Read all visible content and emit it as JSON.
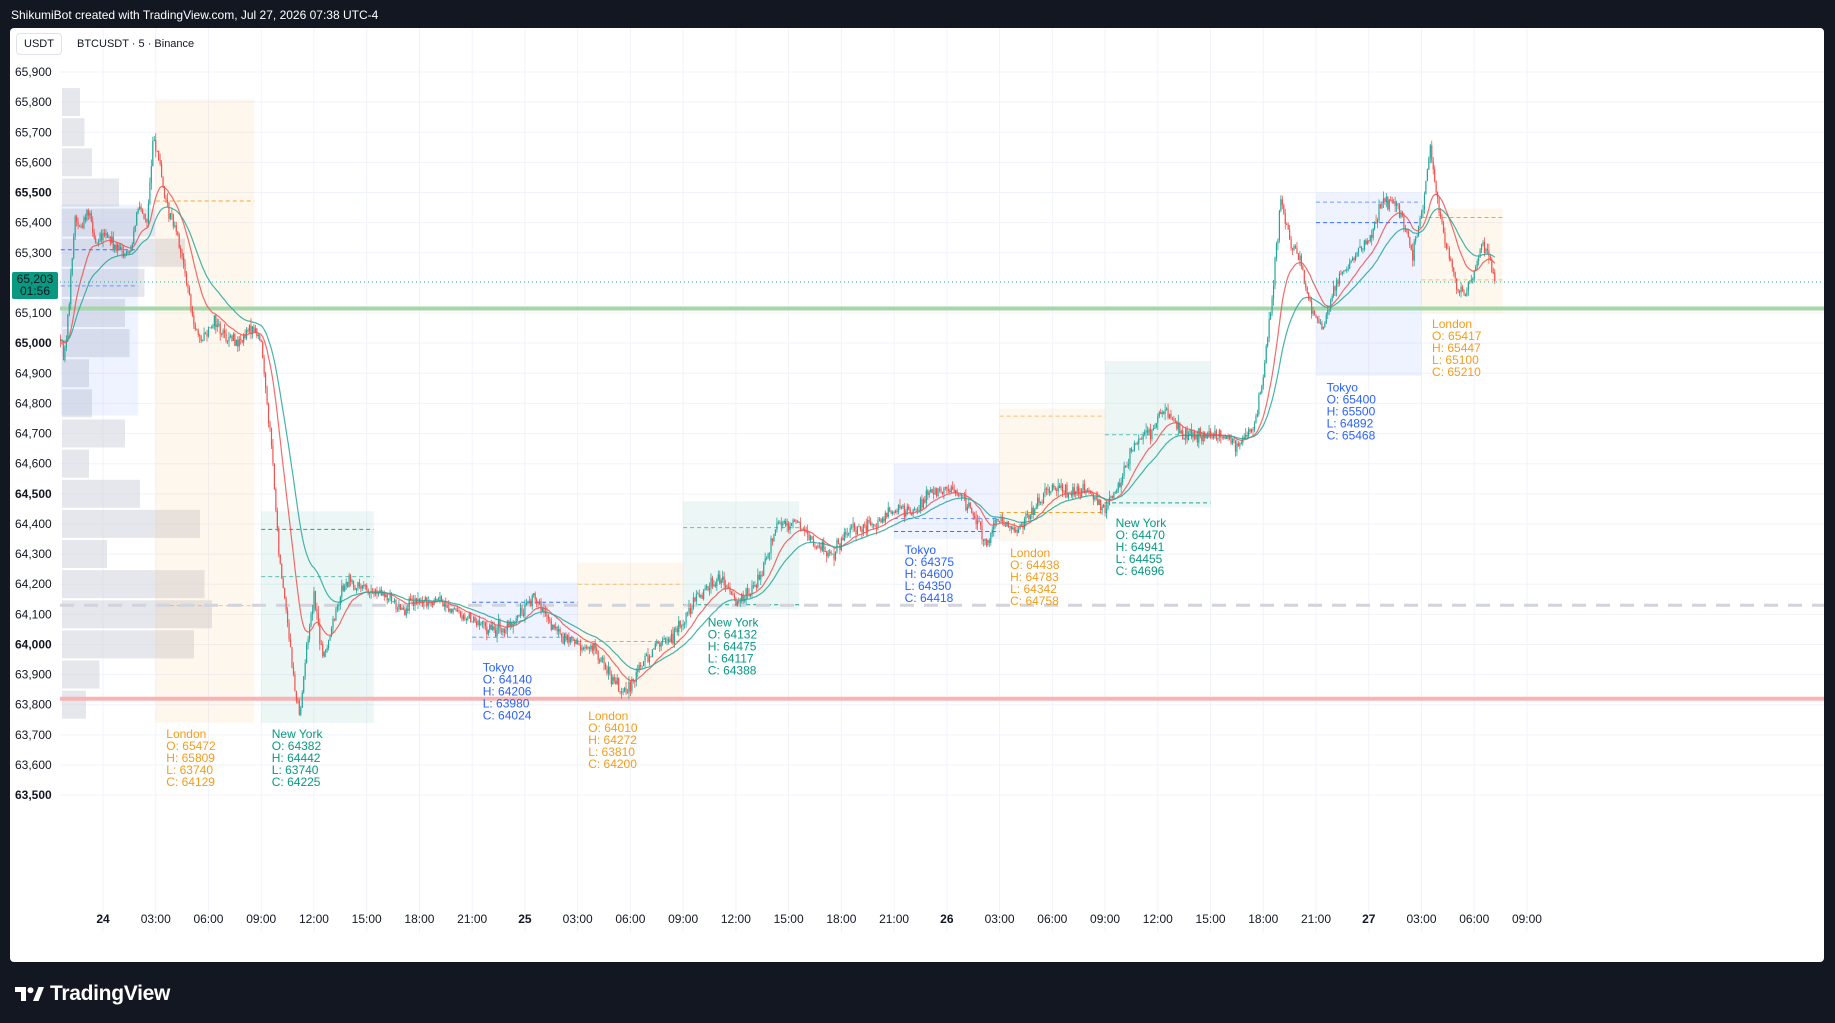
{
  "header": {
    "created_by": "ShikumiBot created with TradingView.com, Jul 27, 2026 07:38 UTC-4"
  },
  "symbol": {
    "currency": "USDT",
    "title": "BTCUSDT · 5 · Binance"
  },
  "footer": {
    "brand": "TradingView"
  },
  "colors": {
    "up": "#26a69a",
    "down": "#ef5350",
    "tokyo": "#2962ff",
    "london": "#f59c1a",
    "newyork": "#089981",
    "ema_fast": "#ef5350",
    "ema_slow": "#26a69a"
  },
  "chart_data": {
    "type": "candlestick",
    "symbol": "BTCUSDT",
    "interval": "5",
    "exchange": "Binance",
    "ylim": [
      63500,
      65950
    ],
    "y_ticks": [
      {
        "value": 65900,
        "label": "65,900"
      },
      {
        "value": 65800,
        "label": "65,800"
      },
      {
        "value": 65700,
        "label": "65,700"
      },
      {
        "value": 65600,
        "label": "65,600"
      },
      {
        "value": 65500,
        "label": "65,500",
        "bold": true
      },
      {
        "value": 65400,
        "label": "65,400"
      },
      {
        "value": 65300,
        "label": "65,300"
      },
      {
        "value": 65100,
        "label": "65,100"
      },
      {
        "value": 65000,
        "label": "65,000",
        "bold": true
      },
      {
        "value": 64900,
        "label": "64,900"
      },
      {
        "value": 64800,
        "label": "64,800"
      },
      {
        "value": 64700,
        "label": "64,700"
      },
      {
        "value": 64600,
        "label": "64,600"
      },
      {
        "value": 64500,
        "label": "64,500",
        "bold": true
      },
      {
        "value": 64400,
        "label": "64,400"
      },
      {
        "value": 64300,
        "label": "64,300"
      },
      {
        "value": 64200,
        "label": "64,200"
      },
      {
        "value": 64100,
        "label": "64,100"
      },
      {
        "value": 64000,
        "label": "64,000",
        "bold": true
      },
      {
        "value": 63900,
        "label": "63,900"
      },
      {
        "value": 63800,
        "label": "63,800"
      },
      {
        "value": 63700,
        "label": "63,700"
      },
      {
        "value": 63600,
        "label": "63,600"
      },
      {
        "value": 63500,
        "label": "63,500",
        "bold": true
      }
    ],
    "x_ticks": [
      {
        "t": 0,
        "label": "24",
        "bold": true
      },
      {
        "t": 3,
        "label": "03:00"
      },
      {
        "t": 6,
        "label": "06:00"
      },
      {
        "t": 9,
        "label": "09:00"
      },
      {
        "t": 12,
        "label": "12:00"
      },
      {
        "t": 15,
        "label": "15:00"
      },
      {
        "t": 18,
        "label": "18:00"
      },
      {
        "t": 21,
        "label": "21:00"
      },
      {
        "t": 24,
        "label": "25",
        "bold": true
      },
      {
        "t": 27,
        "label": "03:00"
      },
      {
        "t": 30,
        "label": "06:00"
      },
      {
        "t": 33,
        "label": "09:00"
      },
      {
        "t": 36,
        "label": "12:00"
      },
      {
        "t": 39,
        "label": "15:00"
      },
      {
        "t": 42,
        "label": "18:00"
      },
      {
        "t": 45,
        "label": "21:00"
      },
      {
        "t": 48,
        "label": "26",
        "bold": true
      },
      {
        "t": 51,
        "label": "03:00"
      },
      {
        "t": 54,
        "label": "06:00"
      },
      {
        "t": 57,
        "label": "09:00"
      },
      {
        "t": 60,
        "label": "12:00"
      },
      {
        "t": 63,
        "label": "15:00"
      },
      {
        "t": 66,
        "label": "18:00"
      },
      {
        "t": 69,
        "label": "21:00"
      },
      {
        "t": 72,
        "label": "27",
        "bold": true
      },
      {
        "t": 75,
        "label": "03:00"
      },
      {
        "t": 78,
        "label": "06:00"
      },
      {
        "t": 81,
        "label": "09:00"
      }
    ],
    "last_price": {
      "label": "65,203",
      "countdown": "01:56",
      "value": 65203
    },
    "key_levels": [
      {
        "name": "green-level",
        "value": 65115,
        "color": "#a5d6a7"
      },
      {
        "name": "red-level",
        "value": 63820,
        "color": "#f8b4b4"
      },
      {
        "name": "gray-dashed-level",
        "value": 64130,
        "color": "#d1d4dc"
      }
    ],
    "price_path": [
      [
        -2.5,
        65020
      ],
      [
        -2.2,
        64960
      ],
      [
        -1.9,
        65150
      ],
      [
        -1.6,
        65420
      ],
      [
        -1.3,
        65380
      ],
      [
        -0.8,
        65450
      ],
      [
        -0.4,
        65330
      ],
      [
        0.2,
        65360
      ],
      [
        0.8,
        65310
      ],
      [
        1.5,
        65300
      ],
      [
        2.0,
        65450
      ],
      [
        2.5,
        65400
      ],
      [
        2.9,
        65700
      ],
      [
        3.2,
        65600
      ],
      [
        3.6,
        65450
      ],
      [
        4.2,
        65380
      ],
      [
        5.0,
        65120
      ],
      [
        5.5,
        65000
      ],
      [
        6.3,
        65080
      ],
      [
        7.0,
        65020
      ],
      [
        7.8,
        65000
      ],
      [
        8.5,
        65060
      ],
      [
        9.0,
        65000
      ],
      [
        9.6,
        64650
      ],
      [
        10.0,
        64300
      ],
      [
        10.5,
        64080
      ],
      [
        10.9,
        63850
      ],
      [
        11.2,
        63770
      ],
      [
        11.6,
        64000
      ],
      [
        12.0,
        64170
      ],
      [
        12.5,
        63950
      ],
      [
        13.0,
        64050
      ],
      [
        13.5,
        64170
      ],
      [
        14.0,
        64210
      ],
      [
        15.0,
        64180
      ],
      [
        16.0,
        64160
      ],
      [
        17.0,
        64120
      ],
      [
        18.0,
        64140
      ],
      [
        19.0,
        64150
      ],
      [
        20.0,
        64110
      ],
      [
        21.0,
        64080
      ],
      [
        22.0,
        64050
      ],
      [
        23.0,
        64050
      ],
      [
        24.0,
        64120
      ],
      [
        24.6,
        64170
      ],
      [
        25.2,
        64080
      ],
      [
        26.0,
        64030
      ],
      [
        27.0,
        64000
      ],
      [
        28.0,
        63980
      ],
      [
        29.0,
        63880
      ],
      [
        29.7,
        63830
      ],
      [
        30.5,
        63930
      ],
      [
        31.5,
        64000
      ],
      [
        32.5,
        64030
      ],
      [
        33.5,
        64130
      ],
      [
        34.0,
        64170
      ],
      [
        35.0,
        64220
      ],
      [
        36.0,
        64150
      ],
      [
        37.0,
        64180
      ],
      [
        37.8,
        64300
      ],
      [
        38.3,
        64400
      ],
      [
        39.5,
        64410
      ],
      [
        40.5,
        64330
      ],
      [
        41.5,
        64300
      ],
      [
        42.5,
        64380
      ],
      [
        44.0,
        64400
      ],
      [
        45.0,
        64450
      ],
      [
        46.0,
        64440
      ],
      [
        47.0,
        64500
      ],
      [
        48.0,
        64520
      ],
      [
        49.0,
        64480
      ],
      [
        49.7,
        64420
      ],
      [
        50.3,
        64330
      ],
      [
        51.0,
        64420
      ],
      [
        52.0,
        64380
      ],
      [
        53.0,
        64450
      ],
      [
        54.0,
        64520
      ],
      [
        55.0,
        64500
      ],
      [
        56.0,
        64520
      ],
      [
        57.0,
        64450
      ],
      [
        58.0,
        64560
      ],
      [
        58.5,
        64650
      ],
      [
        59.5,
        64700
      ],
      [
        60.5,
        64780
      ],
      [
        61.5,
        64690
      ],
      [
        62.5,
        64690
      ],
      [
        63.5,
        64700
      ],
      [
        64.5,
        64660
      ],
      [
        65.5,
        64730
      ],
      [
        66.0,
        64900
      ],
      [
        66.5,
        65150
      ],
      [
        67.0,
        65480
      ],
      [
        67.6,
        65320
      ],
      [
        68.2,
        65250
      ],
      [
        68.8,
        65100
      ],
      [
        69.4,
        65050
      ],
      [
        70.0,
        65180
      ],
      [
        71.0,
        65280
      ],
      [
        72.0,
        65350
      ],
      [
        72.7,
        65460
      ],
      [
        73.5,
        65470
      ],
      [
        74.0,
        65400
      ],
      [
        74.5,
        65300
      ],
      [
        75.0,
        65430
      ],
      [
        75.5,
        65640
      ],
      [
        76.0,
        65450
      ],
      [
        76.5,
        65300
      ],
      [
        77.0,
        65180
      ],
      [
        77.5,
        65160
      ],
      [
        78.0,
        65240
      ],
      [
        78.5,
        65340
      ],
      [
        78.8,
        65280
      ],
      [
        79.2,
        65203
      ]
    ],
    "sessions": [
      {
        "name": "Tokyo",
        "t0": -2.4,
        "t1": 2.0,
        "open": 65310,
        "high": 65460,
        "low": 64760,
        "close": 65190,
        "show_label": false
      },
      {
        "name": "London",
        "t0": 3.0,
        "t1": 8.6,
        "open": 65472,
        "high": 65809,
        "low": 63740,
        "close": 64129,
        "label": [
          "London",
          "O: 65472",
          "H: 65809",
          "L: 63740",
          "C: 64129"
        ],
        "label_t": 3.6,
        "label_value": 63690
      },
      {
        "name": "New York",
        "t0": 9.0,
        "t1": 15.4,
        "open": 64382,
        "high": 64442,
        "low": 63740,
        "close": 64225,
        "label": [
          "New York",
          "O: 64382",
          "H: 64442",
          "L: 63740",
          "C: 64225"
        ],
        "label_t": 9.6,
        "label_value": 63690
      },
      {
        "name": "Tokyo",
        "t0": 21.0,
        "t1": 27.0,
        "open": 64140,
        "high": 64206,
        "low": 63980,
        "close": 64024,
        "label": [
          "Tokyo",
          "O: 64140",
          "H: 64206",
          "L: 63980",
          "C: 64024"
        ],
        "label_t": 21.6,
        "label_value": 63910
      },
      {
        "name": "London",
        "t0": 27.0,
        "t1": 33.0,
        "open": 64010,
        "high": 64272,
        "low": 63810,
        "close": 64200,
        "label": [
          "London",
          "O: 64010",
          "H: 64272",
          "L: 63810",
          "C: 64200"
        ],
        "label_t": 27.6,
        "label_value": 63750
      },
      {
        "name": "New York",
        "t0": 33.0,
        "t1": 39.6,
        "open": 64132,
        "high": 64475,
        "low": 64117,
        "close": 64388,
        "label": [
          "New York",
          "O: 64132",
          "H: 64475",
          "L: 64117",
          "C: 64388"
        ],
        "label_t": 34.4,
        "label_value": 64060
      },
      {
        "name": "Tokyo",
        "t0": 45.0,
        "t1": 51.0,
        "open": 64375,
        "high": 64600,
        "low": 64350,
        "close": 64418,
        "label": [
          "Tokyo",
          "O: 64375",
          "H: 64600",
          "L: 64350",
          "C: 64418"
        ],
        "label_t": 45.6,
        "label_value": 64300
      },
      {
        "name": "London",
        "t0": 51.0,
        "t1": 57.0,
        "open": 64438,
        "high": 64783,
        "low": 64342,
        "close": 64758,
        "label": [
          "London",
          "O: 64438",
          "H: 64783",
          "L: 64342",
          "C: 64758"
        ],
        "label_t": 51.6,
        "label_value": 64290
      },
      {
        "name": "New York",
        "t0": 57.0,
        "t1": 63.0,
        "open": 64470,
        "high": 64941,
        "low": 64455,
        "close": 64696,
        "label": [
          "New York",
          "O: 64470",
          "H: 64941",
          "L: 64455",
          "C: 64696"
        ],
        "label_t": 57.6,
        "label_value": 64390
      },
      {
        "name": "Tokyo",
        "t0": 69.0,
        "t1": 75.0,
        "open": 65400,
        "high": 65500,
        "low": 64892,
        "close": 65468,
        "label": [
          "Tokyo",
          "O: 65400",
          "H: 65500",
          "L: 64892",
          "C: 65468"
        ],
        "label_t": 69.6,
        "label_value": 64840
      },
      {
        "name": "London",
        "t0": 75.0,
        "t1": 79.6,
        "open": 65417,
        "high": 65447,
        "low": 65100,
        "close": 65210,
        "label": [
          "London",
          "O: 65417",
          "H: 65447",
          "L: 65100",
          "C: 65210"
        ],
        "label_t": 75.6,
        "label_value": 65050
      }
    ],
    "volume_profile": [
      {
        "value": 65800,
        "size": 0.12
      },
      {
        "value": 65700,
        "size": 0.15
      },
      {
        "value": 65600,
        "size": 0.2
      },
      {
        "value": 65500,
        "size": 0.38
      },
      {
        "value": 65400,
        "size": 0.62
      },
      {
        "value": 65300,
        "size": 0.82
      },
      {
        "value": 65200,
        "size": 0.55
      },
      {
        "value": 65100,
        "size": 0.42
      },
      {
        "value": 65000,
        "size": 0.45
      },
      {
        "value": 64900,
        "size": 0.18
      },
      {
        "value": 64800,
        "size": 0.2
      },
      {
        "value": 64700,
        "size": 0.42
      },
      {
        "value": 64600,
        "size": 0.18
      },
      {
        "value": 64500,
        "size": 0.52
      },
      {
        "value": 64400,
        "size": 0.92
      },
      {
        "value": 64300,
        "size": 0.3
      },
      {
        "value": 64200,
        "size": 0.95
      },
      {
        "value": 64100,
        "size": 1.0
      },
      {
        "value": 64000,
        "size": 0.88
      },
      {
        "value": 63900,
        "size": 0.25
      },
      {
        "value": 63800,
        "size": 0.16
      }
    ]
  }
}
